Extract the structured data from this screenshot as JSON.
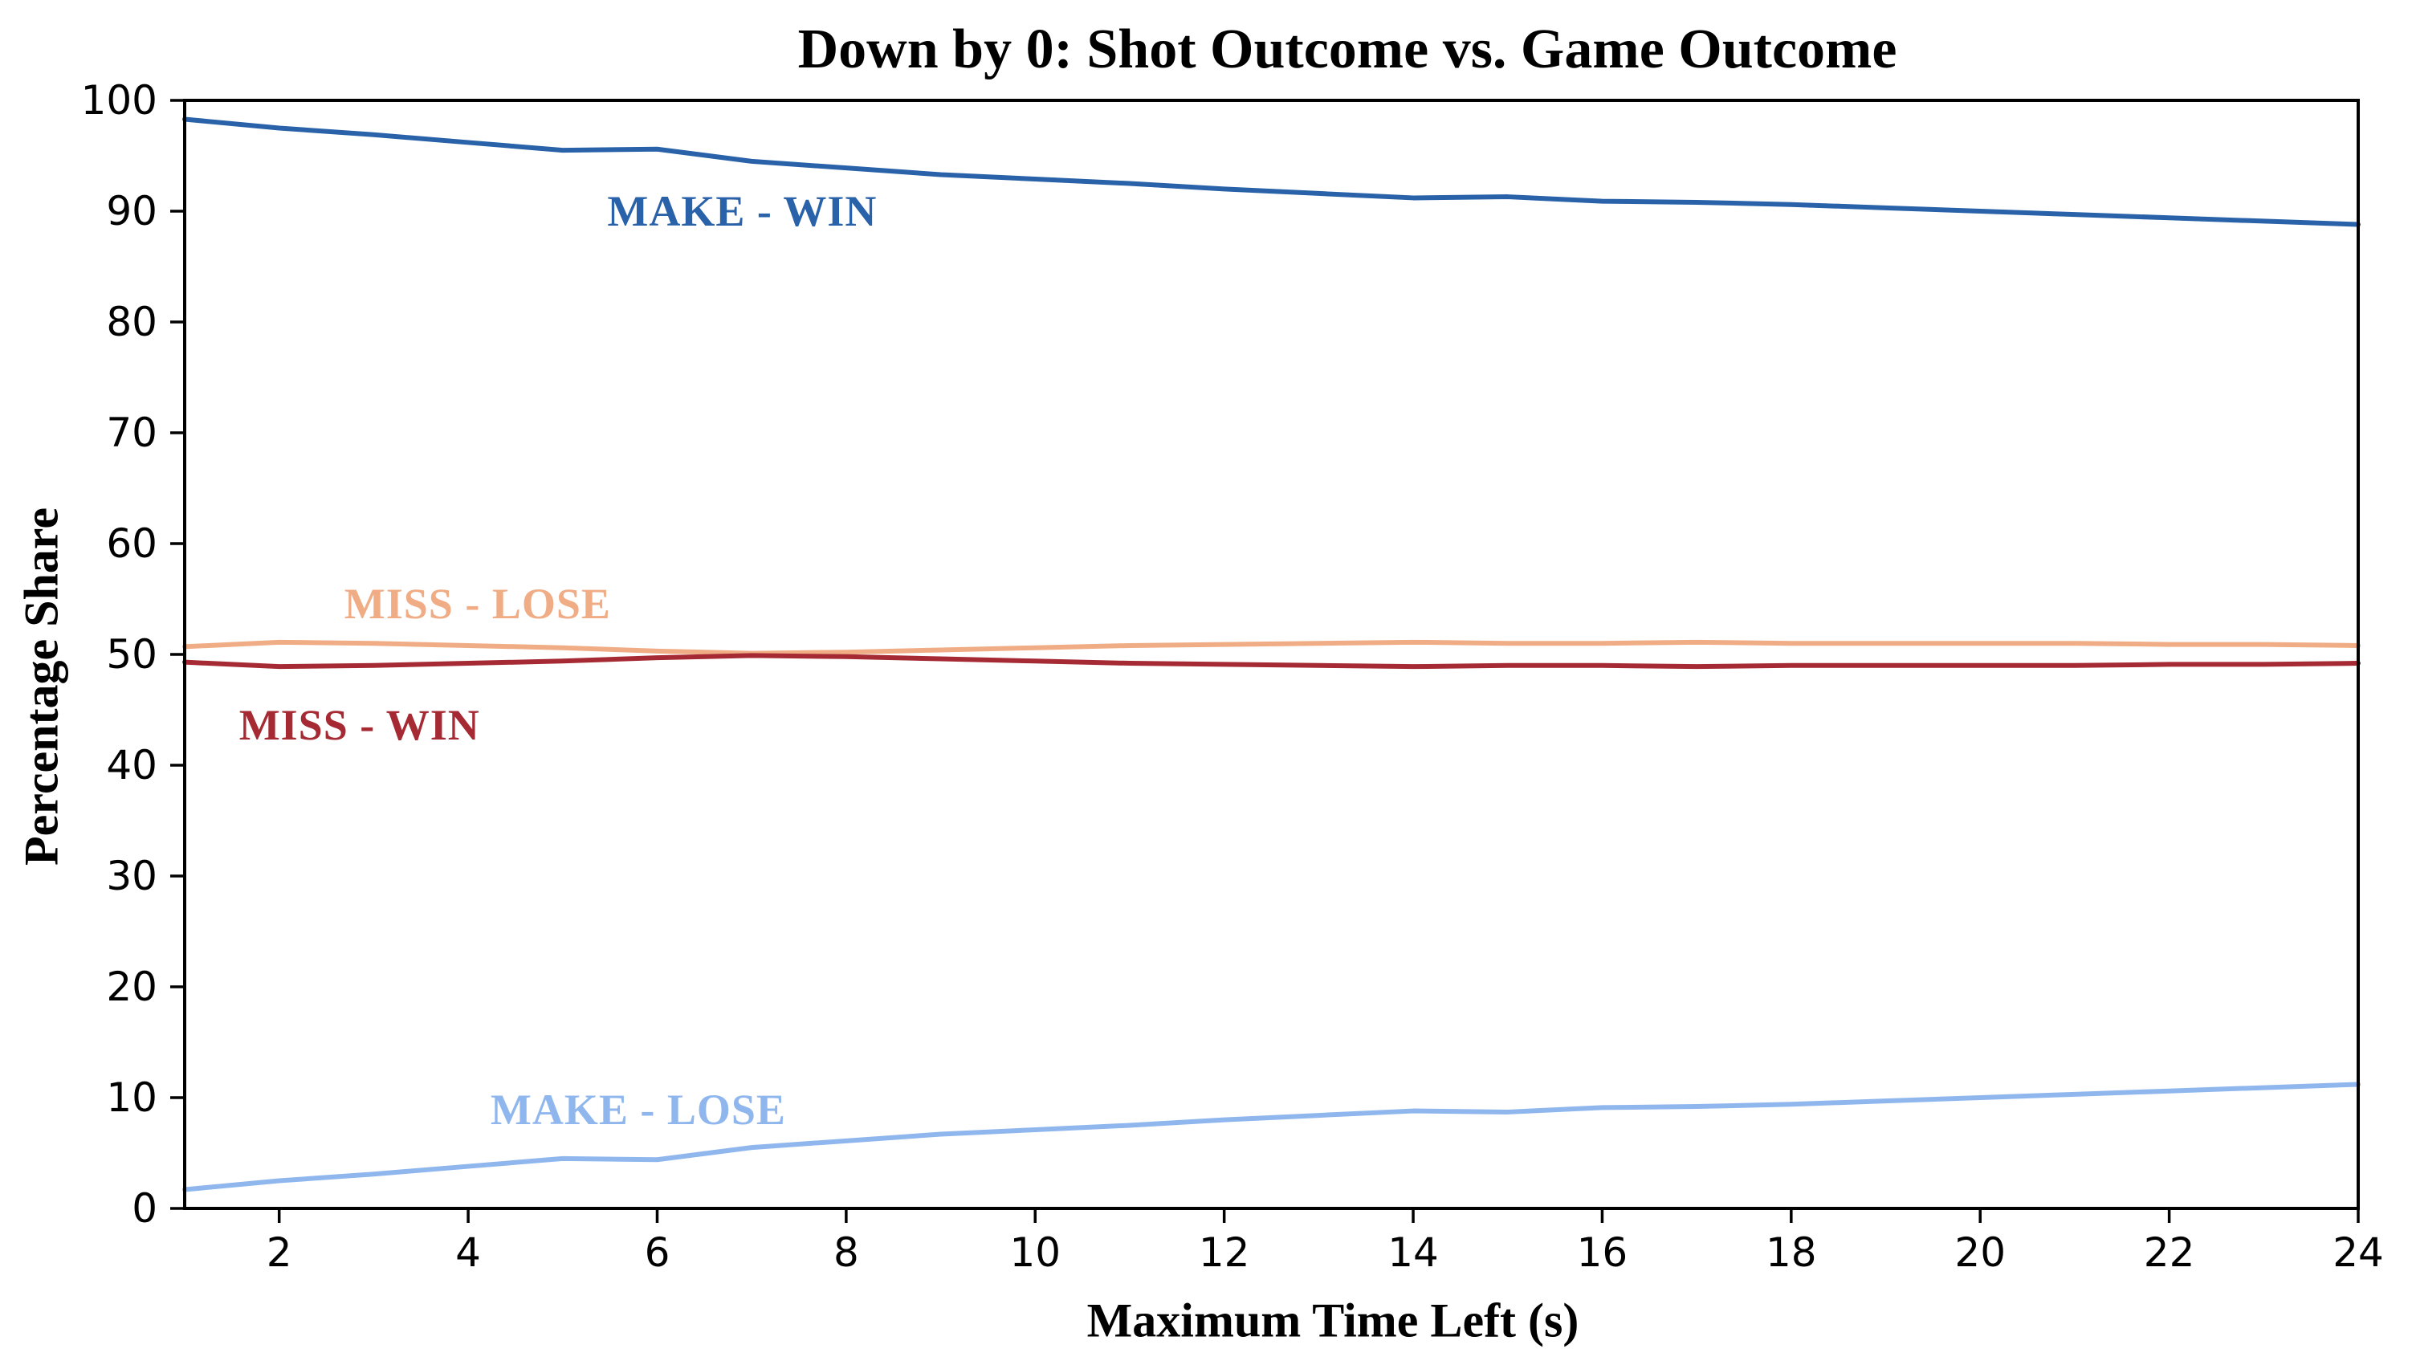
{
  "chart_data": {
    "type": "line",
    "title": "Down by 0: Shot Outcome vs. Game Outcome",
    "xlabel": "Maximum Time Left (s)",
    "ylabel": "Percentage Share",
    "xlim": [
      1,
      24
    ],
    "ylim": [
      0,
      100
    ],
    "x_ticks": [
      2,
      4,
      6,
      8,
      10,
      12,
      14,
      16,
      18,
      20,
      22,
      24
    ],
    "y_ticks": [
      0,
      10,
      20,
      30,
      40,
      50,
      60,
      70,
      80,
      90,
      100
    ],
    "grid": false,
    "legend": "inline-labels",
    "x": [
      1,
      2,
      3,
      4,
      5,
      6,
      7,
      8,
      9,
      10,
      11,
      12,
      13,
      14,
      15,
      16,
      17,
      18,
      19,
      20,
      21,
      22,
      23,
      24
    ],
    "series": [
      {
        "name": "MAKE - WIN",
        "color": "#2962a9",
        "label_pos": {
          "x": 6.9,
          "y": 90.0
        },
        "values": [
          98.3,
          97.5,
          96.9,
          96.2,
          95.5,
          95.6,
          94.5,
          93.9,
          93.3,
          92.9,
          92.5,
          92.0,
          91.6,
          91.2,
          91.3,
          90.9,
          90.8,
          90.6,
          90.3,
          90.0,
          89.7,
          89.4,
          89.1,
          88.8
        ]
      },
      {
        "name": "MISS - LOSE",
        "color": "#f0ad85",
        "label_pos": {
          "x": 4.1,
          "y": 54.6
        },
        "values": [
          50.7,
          51.1,
          51.0,
          50.8,
          50.6,
          50.3,
          50.1,
          50.2,
          50.4,
          50.6,
          50.8,
          50.9,
          51.0,
          51.1,
          51.0,
          51.0,
          51.1,
          51.0,
          51.0,
          51.0,
          51.0,
          50.9,
          50.9,
          50.8
        ]
      },
      {
        "name": "MISS - WIN",
        "color": "#a62a33",
        "label_pos": {
          "x": 2.85,
          "y": 43.6
        },
        "values": [
          49.3,
          48.9,
          49.0,
          49.2,
          49.4,
          49.7,
          49.9,
          49.8,
          49.6,
          49.4,
          49.2,
          49.1,
          49.0,
          48.9,
          49.0,
          49.0,
          48.9,
          49.0,
          49.0,
          49.0,
          49.0,
          49.1,
          49.1,
          49.2
        ]
      },
      {
        "name": "MAKE - LOSE",
        "color": "#8fb7ee",
        "label_pos": {
          "x": 5.8,
          "y": 8.9
        },
        "values": [
          1.7,
          2.5,
          3.1,
          3.8,
          4.5,
          4.4,
          5.5,
          6.1,
          6.7,
          7.1,
          7.5,
          8.0,
          8.4,
          8.8,
          8.7,
          9.1,
          9.2,
          9.4,
          9.7,
          10.0,
          10.3,
          10.6,
          10.9,
          11.2
        ]
      }
    ]
  }
}
